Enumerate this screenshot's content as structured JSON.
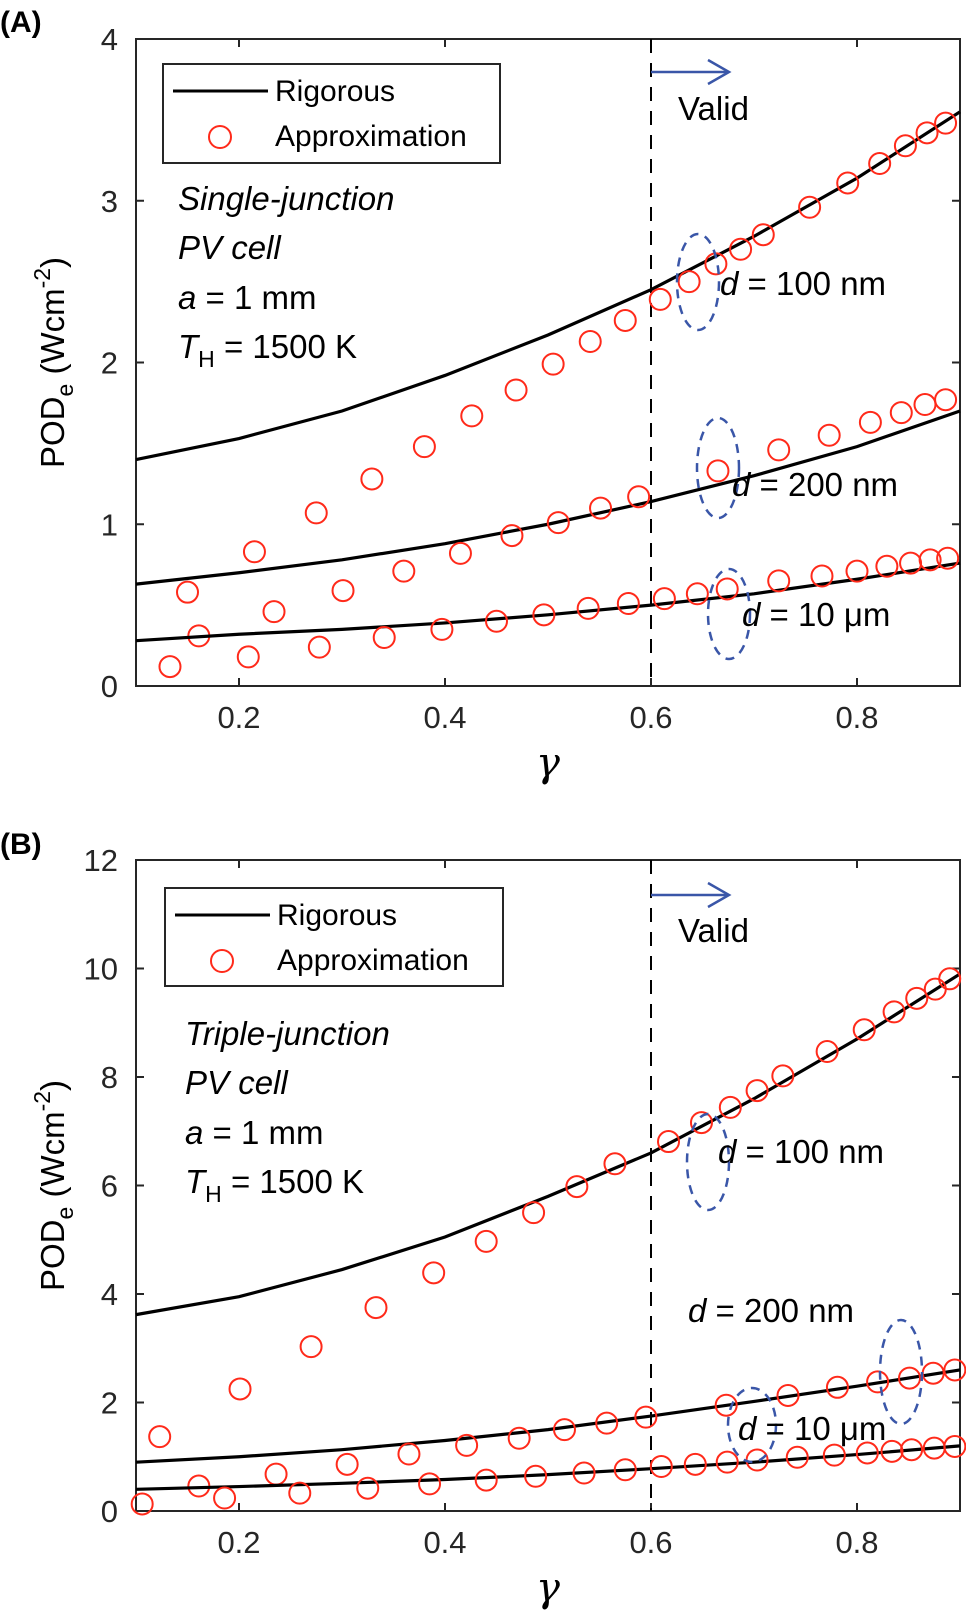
{
  "chart_data": [
    {
      "panel_label": "(A)",
      "type": "line+scatter",
      "xlabel": "γ",
      "ylabel": "POD",
      "ylabel_sub": "e",
      "ylabel_unit": "(Wcm",
      "ylabel_sup": "-2",
      "ylabel_close": ")",
      "xlim": [
        0.1,
        0.9
      ],
      "ylim": [
        0,
        4
      ],
      "xticks": [
        "0.2",
        "0.4",
        "0.6",
        "0.8"
      ],
      "xtick_values": [
        0.2,
        0.4,
        0.6,
        0.8
      ],
      "yticks": [
        "0",
        "1",
        "2",
        "3",
        "4"
      ],
      "ytick_values": [
        0,
        1,
        2,
        3,
        4
      ],
      "legend": {
        "rigorous": "Rigorous",
        "approx": "Approximation",
        "position": "top-left"
      },
      "text": {
        "line1": "Single-junction",
        "line2": "PV cell",
        "line3_var": "a",
        "line3_rest": " = 1 mm",
        "line4_var": "T",
        "line4_sub": "H",
        "line4_rest": " = 1500 K",
        "valid": "Valid"
      },
      "valid_threshold": 0.6,
      "series": [
        {
          "label_var": "d",
          "label_rest": " = 100 nm",
          "rigorous": [
            [
              0.1,
              1.4
            ],
            [
              0.2,
              1.53
            ],
            [
              0.3,
              1.7
            ],
            [
              0.4,
              1.92
            ],
            [
              0.5,
              2.17
            ],
            [
              0.6,
              2.45
            ],
            [
              0.7,
              2.78
            ],
            [
              0.8,
              3.14
            ],
            [
              0.9,
              3.55
            ]
          ],
          "approx": [
            [
              0.15,
              0.58
            ],
            [
              0.215,
              0.83
            ],
            [
              0.275,
              1.07
            ],
            [
              0.329,
              1.28
            ],
            [
              0.38,
              1.48
            ],
            [
              0.426,
              1.67
            ],
            [
              0.469,
              1.83
            ],
            [
              0.505,
              1.99
            ],
            [
              0.541,
              2.13
            ],
            [
              0.575,
              2.26
            ],
            [
              0.609,
              2.39
            ],
            [
              0.637,
              2.5
            ],
            [
              0.663,
              2.61
            ],
            [
              0.687,
              2.7
            ],
            [
              0.709,
              2.79
            ],
            [
              0.754,
              2.96
            ],
            [
              0.791,
              3.11
            ],
            [
              0.822,
              3.23
            ],
            [
              0.847,
              3.34
            ],
            [
              0.868,
              3.42
            ],
            [
              0.886,
              3.48
            ]
          ]
        },
        {
          "label_var": "d",
          "label_rest": " = 200 nm",
          "rigorous": [
            [
              0.1,
              0.63
            ],
            [
              0.2,
              0.7
            ],
            [
              0.3,
              0.78
            ],
            [
              0.4,
              0.88
            ],
            [
              0.5,
              1.0
            ],
            [
              0.6,
              1.14
            ],
            [
              0.7,
              1.3
            ],
            [
              0.8,
              1.48
            ],
            [
              0.9,
              1.7
            ]
          ],
          "approx": [
            [
              0.161,
              0.31
            ],
            [
              0.234,
              0.46
            ],
            [
              0.301,
              0.59
            ],
            [
              0.36,
              0.71
            ],
            [
              0.415,
              0.82
            ],
            [
              0.465,
              0.93
            ],
            [
              0.51,
              1.01
            ],
            [
              0.551,
              1.1
            ],
            [
              0.588,
              1.17
            ],
            [
              0.665,
              1.33
            ],
            [
              0.724,
              1.46
            ],
            [
              0.773,
              1.55
            ],
            [
              0.813,
              1.63
            ],
            [
              0.843,
              1.69
            ],
            [
              0.866,
              1.74
            ],
            [
              0.886,
              1.77
            ]
          ]
        },
        {
          "label_var": "d",
          "label_rest": " = 10 μm",
          "rigorous": [
            [
              0.1,
              0.28
            ],
            [
              0.2,
              0.32
            ],
            [
              0.3,
              0.35
            ],
            [
              0.4,
              0.39
            ],
            [
              0.5,
              0.44
            ],
            [
              0.6,
              0.5
            ],
            [
              0.7,
              0.57
            ],
            [
              0.8,
              0.66
            ],
            [
              0.9,
              0.76
            ]
          ],
          "approx": [
            [
              0.133,
              0.12
            ],
            [
              0.209,
              0.18
            ],
            [
              0.278,
              0.24
            ],
            [
              0.341,
              0.3
            ],
            [
              0.397,
              0.35
            ],
            [
              0.45,
              0.4
            ],
            [
              0.496,
              0.44
            ],
            [
              0.539,
              0.48
            ],
            [
              0.578,
              0.51
            ],
            [
              0.613,
              0.54
            ],
            [
              0.645,
              0.57
            ],
            [
              0.674,
              0.6
            ],
            [
              0.724,
              0.65
            ],
            [
              0.766,
              0.68
            ],
            [
              0.8,
              0.71
            ],
            [
              0.829,
              0.74
            ],
            [
              0.852,
              0.76
            ],
            [
              0.871,
              0.78
            ],
            [
              0.888,
              0.79
            ]
          ]
        }
      ]
    },
    {
      "panel_label": "(B)",
      "type": "line+scatter",
      "xlabel": "γ",
      "ylabel": "POD",
      "ylabel_sub": "e",
      "ylabel_unit": "(Wcm",
      "ylabel_sup": "-2",
      "ylabel_close": ")",
      "xlim": [
        0.1,
        0.9
      ],
      "ylim": [
        0,
        12
      ],
      "xticks": [
        "0.2",
        "0.4",
        "0.6",
        "0.8"
      ],
      "xtick_values": [
        0.2,
        0.4,
        0.6,
        0.8
      ],
      "yticks": [
        "0",
        "2",
        "4",
        "6",
        "8",
        "10",
        "12"
      ],
      "ytick_values": [
        0,
        2,
        4,
        6,
        8,
        10,
        12
      ],
      "legend": {
        "rigorous": "Rigorous",
        "approx": "Approximation",
        "position": "top-left"
      },
      "text": {
        "line1": "Triple-junction",
        "line2": "PV cell",
        "line3_var": "a",
        "line3_rest": " = 1 mm",
        "line4_var": "T",
        "line4_sub": "H",
        "line4_rest": " = 1500 K",
        "valid": "Valid"
      },
      "valid_threshold": 0.6,
      "series": [
        {
          "label_var": "d",
          "label_rest": " = 100 nm",
          "rigorous": [
            [
              0.1,
              3.62
            ],
            [
              0.2,
              3.95
            ],
            [
              0.3,
              4.45
            ],
            [
              0.4,
              5.05
            ],
            [
              0.5,
              5.8
            ],
            [
              0.6,
              6.6
            ],
            [
              0.7,
              7.6
            ],
            [
              0.8,
              8.7
            ],
            [
              0.9,
              9.9
            ]
          ],
          "approx": [
            [
              0.123,
              1.37
            ],
            [
              0.201,
              2.25
            ],
            [
              0.27,
              3.03
            ],
            [
              0.333,
              3.75
            ],
            [
              0.389,
              4.39
            ],
            [
              0.44,
              4.97
            ],
            [
              0.486,
              5.5
            ],
            [
              0.528,
              5.98
            ],
            [
              0.565,
              6.4
            ],
            [
              0.617,
              6.81
            ],
            [
              0.649,
              7.16
            ],
            [
              0.677,
              7.44
            ],
            [
              0.703,
              7.75
            ],
            [
              0.728,
              8.02
            ],
            [
              0.771,
              8.47
            ],
            [
              0.807,
              8.87
            ],
            [
              0.836,
              9.2
            ],
            [
              0.858,
              9.45
            ],
            [
              0.876,
              9.62
            ],
            [
              0.89,
              9.81
            ]
          ]
        },
        {
          "label_var": "d",
          "label_rest": " = 200 nm",
          "rigorous": [
            [
              0.1,
              0.9
            ],
            [
              0.2,
              1.0
            ],
            [
              0.3,
              1.13
            ],
            [
              0.4,
              1.3
            ],
            [
              0.5,
              1.5
            ],
            [
              0.6,
              1.75
            ],
            [
              0.7,
              2.02
            ],
            [
              0.8,
              2.3
            ],
            [
              0.9,
              2.6
            ]
          ],
          "approx": [
            [
              0.161,
              0.46
            ],
            [
              0.236,
              0.68
            ],
            [
              0.305,
              0.86
            ],
            [
              0.365,
              1.05
            ],
            [
              0.421,
              1.21
            ],
            [
              0.472,
              1.34
            ],
            [
              0.516,
              1.5
            ],
            [
              0.557,
              1.62
            ],
            [
              0.595,
              1.73
            ],
            [
              0.673,
              1.95
            ],
            [
              0.733,
              2.13
            ],
            [
              0.781,
              2.28
            ],
            [
              0.82,
              2.38
            ],
            [
              0.851,
              2.45
            ],
            [
              0.874,
              2.54
            ],
            [
              0.895,
              2.6
            ]
          ]
        },
        {
          "label_var": "d",
          "label_rest": " = 10 μm",
          "rigorous": [
            [
              0.1,
              0.4
            ],
            [
              0.2,
              0.45
            ],
            [
              0.3,
              0.51
            ],
            [
              0.4,
              0.58
            ],
            [
              0.5,
              0.67
            ],
            [
              0.6,
              0.78
            ],
            [
              0.7,
              0.9
            ],
            [
              0.8,
              1.04
            ],
            [
              0.9,
              1.2
            ]
          ],
          "approx": [
            [
              0.106,
              0.13
            ],
            [
              0.186,
              0.24
            ],
            [
              0.259,
              0.33
            ],
            [
              0.325,
              0.42
            ],
            [
              0.385,
              0.5
            ],
            [
              0.44,
              0.57
            ],
            [
              0.488,
              0.64
            ],
            [
              0.535,
              0.7
            ],
            [
              0.575,
              0.76
            ],
            [
              0.61,
              0.82
            ],
            [
              0.643,
              0.86
            ],
            [
              0.674,
              0.9
            ],
            [
              0.703,
              0.94
            ],
            [
              0.742,
              0.99
            ],
            [
              0.778,
              1.03
            ],
            [
              0.81,
              1.07
            ],
            [
              0.834,
              1.1
            ],
            [
              0.853,
              1.13
            ],
            [
              0.875,
              1.16
            ],
            [
              0.895,
              1.19
            ]
          ]
        }
      ]
    }
  ],
  "colors": {
    "rigorous": "#000000",
    "approx": "#ff2a1a",
    "annotation": "#3a56a8"
  }
}
